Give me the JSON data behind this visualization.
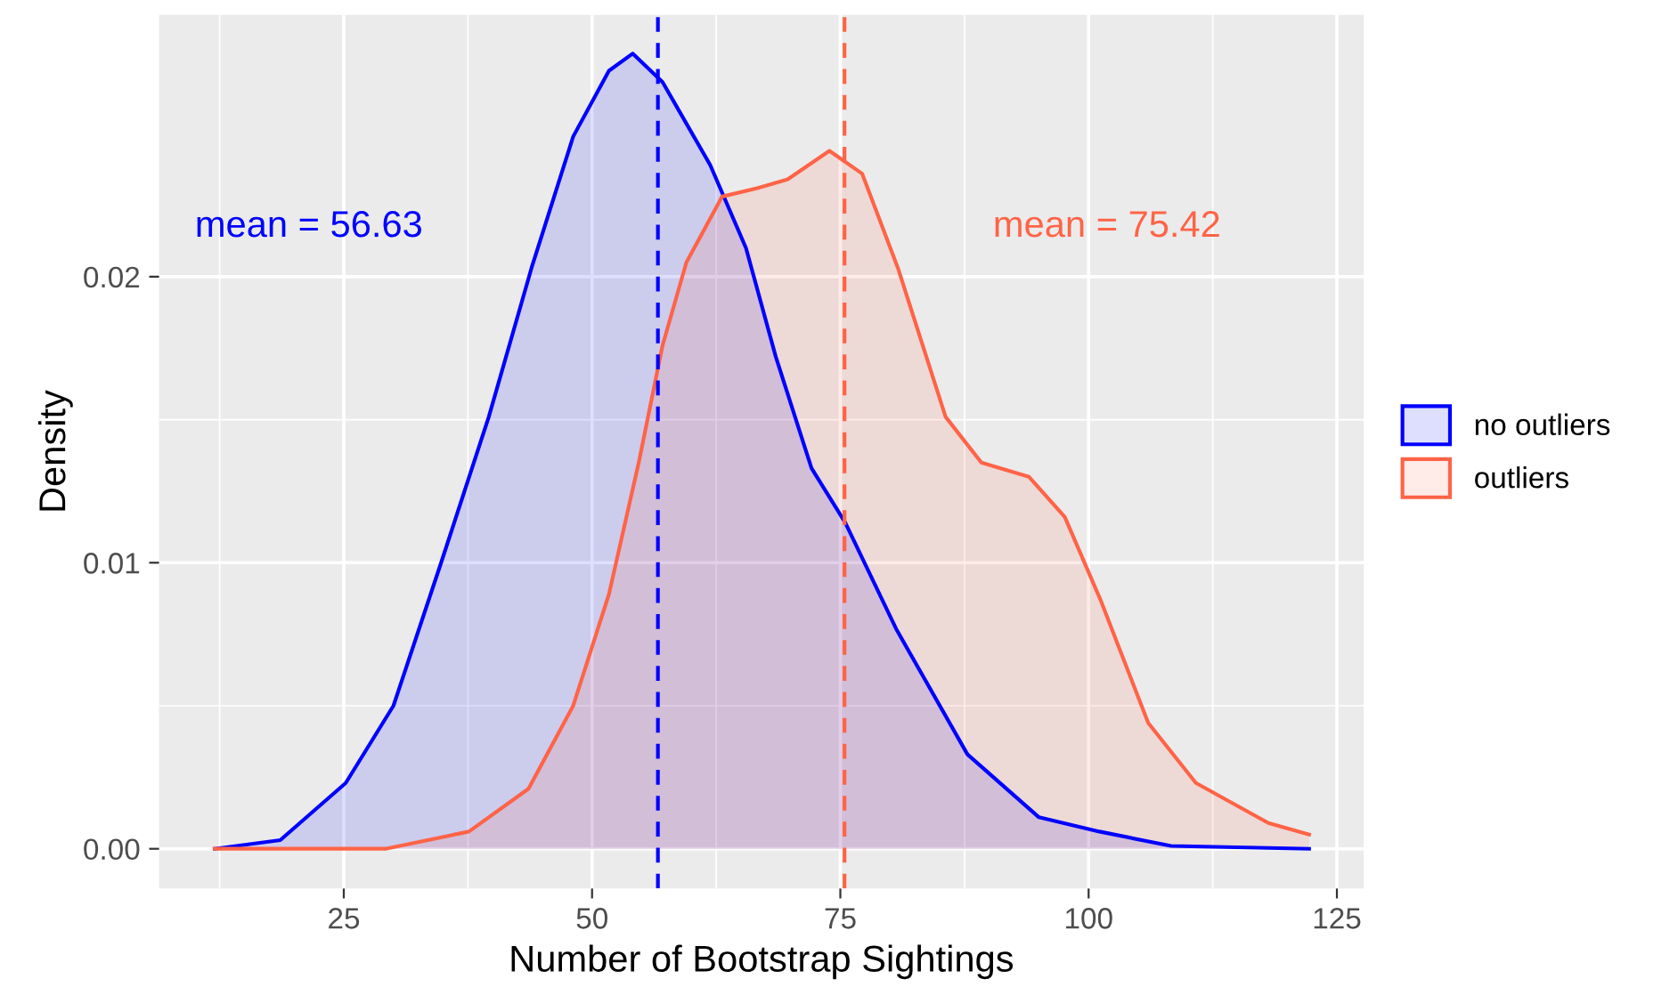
{
  "chart_data": {
    "type": "area",
    "xlabel": "Number of Bootstrap Sightings",
    "ylabel": "Density",
    "xlim": [
      6.4,
      127.7
    ],
    "ylim": [
      -0.00139,
      0.02915
    ],
    "xticks": [
      25,
      50,
      75,
      100,
      125
    ],
    "yticks": [
      {
        "value": 0,
        "label": "0.00"
      },
      {
        "value": 0.01,
        "label": "0.01"
      },
      {
        "value": 0.02,
        "label": "0.02"
      }
    ],
    "grid": true,
    "legend": "right",
    "series": [
      {
        "name": "no outliers",
        "color": "#0000ff",
        "x": [
          12.0,
          18.6,
          25.2,
          30.0,
          34.8,
          39.6,
          43.9,
          48.1,
          51.7,
          54.1,
          57.1,
          61.9,
          65.5,
          68.5,
          72.1,
          75.5,
          80.6,
          87.8,
          95.0,
          101.1,
          108.3,
          122.2
        ],
        "values": [
          0.0,
          0.0003,
          0.0023,
          0.005,
          0.01,
          0.0151,
          0.0203,
          0.0249,
          0.0272,
          0.0278,
          0.0268,
          0.0239,
          0.021,
          0.0172,
          0.0133,
          0.0114,
          0.0077,
          0.0033,
          0.0011,
          0.0006,
          0.0001,
          0.0
        ]
      },
      {
        "name": "outliers",
        "color": "#ff6347",
        "x": [
          12.0,
          29.2,
          37.6,
          43.6,
          48.1,
          51.7,
          54.7,
          57.1,
          59.5,
          63.1,
          66.7,
          69.7,
          73.9,
          77.2,
          80.8,
          85.6,
          89.2,
          94.0,
          97.6,
          101.2,
          106.0,
          110.8,
          118.1,
          122.2
        ],
        "values": [
          0.0,
          0.0,
          0.0006,
          0.0021,
          0.005,
          0.0089,
          0.0135,
          0.0176,
          0.0205,
          0.0228,
          0.0231,
          0.0234,
          0.0244,
          0.0236,
          0.0203,
          0.0151,
          0.0135,
          0.013,
          0.0116,
          0.0087,
          0.0044,
          0.0023,
          0.0009,
          0.0005
        ]
      }
    ],
    "ref_lines": [
      {
        "axis": "x",
        "value": 56.63,
        "color": "#0000ff",
        "line_style": "dashed",
        "label": "mean = 56.63"
      },
      {
        "axis": "x",
        "value": 75.42,
        "color": "#ff6347",
        "line_style": "dashed",
        "label": "mean = 75.42"
      }
    ]
  }
}
